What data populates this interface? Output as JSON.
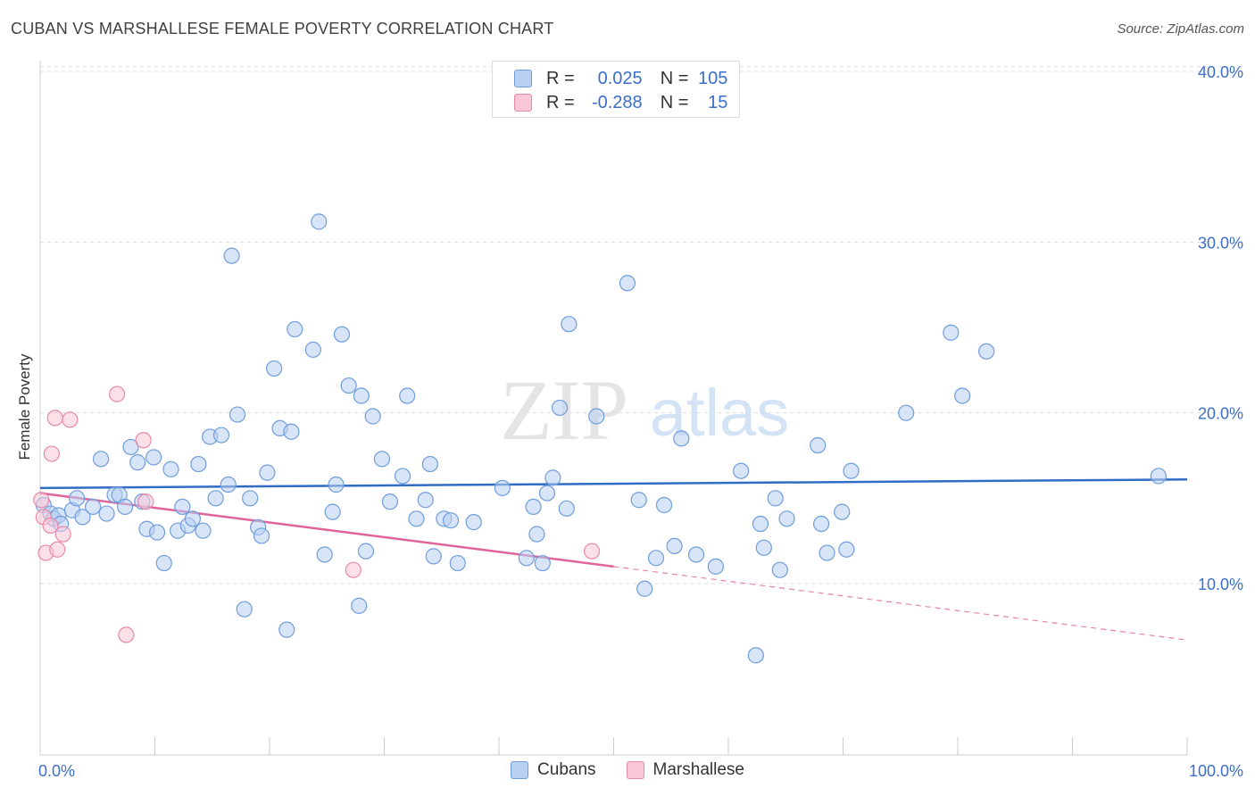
{
  "header": {
    "title": "CUBAN VS MARSHALLESE FEMALE POVERTY CORRELATION CHART",
    "source": "Source: ZipAtlas.com"
  },
  "watermark": {
    "zip": "ZIP",
    "atlas": "atlas"
  },
  "legend": {
    "rows": [
      {
        "r_label": "R =",
        "r_value": "0.025",
        "n_label": "N =",
        "n_value": "105"
      },
      {
        "r_label": "R =",
        "r_value": "-0.288",
        "n_label": "N =",
        "n_value": "15"
      }
    ]
  },
  "bottom_legend": {
    "cubans": "Cubans",
    "marshallese": "Marshallese"
  },
  "colors": {
    "cubans_fill": "#b8d0f2",
    "cubans_stroke": "#6f9ddc",
    "cubans_line": "#2f6cc4",
    "marshallese_fill": "#f9c7d6",
    "marshallese_stroke": "#e889a8",
    "marshallese_line": "#e0639a",
    "axis_text": "#3b6fc9",
    "grid": "#dddddd"
  },
  "chart_data": {
    "type": "scatter",
    "title": "CUBAN VS MARSHALLESE FEMALE POVERTY CORRELATION CHART",
    "xlabel": "",
    "ylabel": "Female Poverty",
    "xlim": [
      0,
      100
    ],
    "ylim": [
      0,
      42
    ],
    "x_tick_labels": [
      "0.0%",
      "100.0%"
    ],
    "y_ticks": [
      10,
      20,
      30,
      40
    ],
    "y_tick_labels": [
      "10.0%",
      "20.0%",
      "30.0%",
      "40.0%"
    ],
    "grid": "horizontal dashed",
    "legend_position": "top-center",
    "series": [
      {
        "name": "Cubans",
        "r": 0.025,
        "n": 105,
        "trend": {
          "x": [
            0,
            100
          ],
          "y": [
            15.6,
            16.1
          ]
        },
        "points": [
          [
            0.3,
            14.6
          ],
          [
            0.9,
            14.1
          ],
          [
            1.2,
            13.8
          ],
          [
            1.6,
            14.0
          ],
          [
            1.8,
            13.5
          ],
          [
            2.8,
            14.3
          ],
          [
            3.2,
            15.0
          ],
          [
            3.7,
            13.9
          ],
          [
            4.6,
            14.5
          ],
          [
            5.3,
            17.3
          ],
          [
            5.8,
            14.1
          ],
          [
            6.5,
            15.2
          ],
          [
            6.9,
            15.2
          ],
          [
            7.4,
            14.5
          ],
          [
            7.9,
            18.0
          ],
          [
            8.5,
            17.1
          ],
          [
            8.9,
            14.8
          ],
          [
            9.3,
            13.2
          ],
          [
            9.9,
            17.4
          ],
          [
            10.2,
            13.0
          ],
          [
            10.8,
            11.2
          ],
          [
            11.4,
            16.7
          ],
          [
            12.0,
            13.1
          ],
          [
            12.4,
            14.5
          ],
          [
            12.9,
            13.4
          ],
          [
            13.3,
            13.8
          ],
          [
            13.8,
            17.0
          ],
          [
            14.2,
            13.1
          ],
          [
            14.8,
            18.6
          ],
          [
            15.3,
            15.0
          ],
          [
            15.8,
            18.7
          ],
          [
            16.4,
            15.8
          ],
          [
            16.7,
            29.2
          ],
          [
            17.2,
            19.9
          ],
          [
            17.8,
            8.5
          ],
          [
            18.3,
            15.0
          ],
          [
            19.0,
            13.3
          ],
          [
            19.3,
            12.8
          ],
          [
            19.8,
            16.5
          ],
          [
            20.4,
            22.6
          ],
          [
            20.9,
            19.1
          ],
          [
            21.5,
            7.3
          ],
          [
            21.9,
            18.9
          ],
          [
            22.2,
            24.9
          ],
          [
            23.8,
            23.7
          ],
          [
            24.3,
            31.2
          ],
          [
            24.8,
            11.7
          ],
          [
            25.5,
            14.2
          ],
          [
            25.8,
            15.8
          ],
          [
            26.3,
            24.6
          ],
          [
            26.9,
            21.6
          ],
          [
            27.8,
            8.7
          ],
          [
            28.0,
            21.0
          ],
          [
            28.4,
            11.9
          ],
          [
            29.0,
            19.8
          ],
          [
            29.8,
            17.3
          ],
          [
            30.5,
            14.8
          ],
          [
            31.6,
            16.3
          ],
          [
            32.0,
            21.0
          ],
          [
            32.8,
            13.8
          ],
          [
            33.6,
            14.9
          ],
          [
            34.0,
            17.0
          ],
          [
            34.3,
            11.6
          ],
          [
            35.2,
            13.8
          ],
          [
            35.8,
            13.7
          ],
          [
            36.4,
            11.2
          ],
          [
            37.8,
            13.6
          ],
          [
            40.3,
            15.6
          ],
          [
            42.4,
            11.5
          ],
          [
            43.0,
            14.5
          ],
          [
            43.3,
            12.9
          ],
          [
            43.8,
            11.2
          ],
          [
            44.2,
            15.3
          ],
          [
            44.7,
            16.2
          ],
          [
            45.3,
            20.3
          ],
          [
            45.9,
            14.4
          ],
          [
            46.1,
            25.2
          ],
          [
            48.5,
            19.8
          ],
          [
            51.2,
            27.6
          ],
          [
            52.2,
            14.9
          ],
          [
            52.7,
            9.7
          ],
          [
            53.7,
            11.5
          ],
          [
            54.4,
            14.6
          ],
          [
            55.3,
            12.2
          ],
          [
            55.9,
            18.5
          ],
          [
            57.2,
            11.7
          ],
          [
            58.9,
            11.0
          ],
          [
            61.1,
            16.6
          ],
          [
            62.4,
            5.8
          ],
          [
            62.8,
            13.5
          ],
          [
            63.1,
            12.1
          ],
          [
            64.1,
            15.0
          ],
          [
            64.5,
            10.8
          ],
          [
            65.1,
            13.8
          ],
          [
            67.8,
            18.1
          ],
          [
            68.1,
            13.5
          ],
          [
            68.6,
            11.8
          ],
          [
            69.9,
            14.2
          ],
          [
            70.3,
            12.0
          ],
          [
            70.7,
            16.6
          ],
          [
            75.5,
            20.0
          ],
          [
            79.4,
            24.7
          ],
          [
            80.4,
            21.0
          ],
          [
            82.5,
            23.6
          ],
          [
            97.5,
            16.3
          ]
        ]
      },
      {
        "name": "Marshallese",
        "r": -0.288,
        "n": 15,
        "trend": {
          "x": [
            0,
            50
          ],
          "y": [
            15.3,
            11.0
          ]
        },
        "trend_dashed": {
          "x": [
            50,
            100
          ],
          "y": [
            11.0,
            6.7
          ]
        },
        "points": [
          [
            0.1,
            14.9
          ],
          [
            0.3,
            13.9
          ],
          [
            0.5,
            11.8
          ],
          [
            0.9,
            13.4
          ],
          [
            1.0,
            17.6
          ],
          [
            1.3,
            19.7
          ],
          [
            1.5,
            12.0
          ],
          [
            2.0,
            12.9
          ],
          [
            2.6,
            19.6
          ],
          [
            6.7,
            21.1
          ],
          [
            7.5,
            7.0
          ],
          [
            9.0,
            18.4
          ],
          [
            9.2,
            14.8
          ],
          [
            27.3,
            10.8
          ],
          [
            48.1,
            11.9
          ]
        ]
      }
    ]
  }
}
